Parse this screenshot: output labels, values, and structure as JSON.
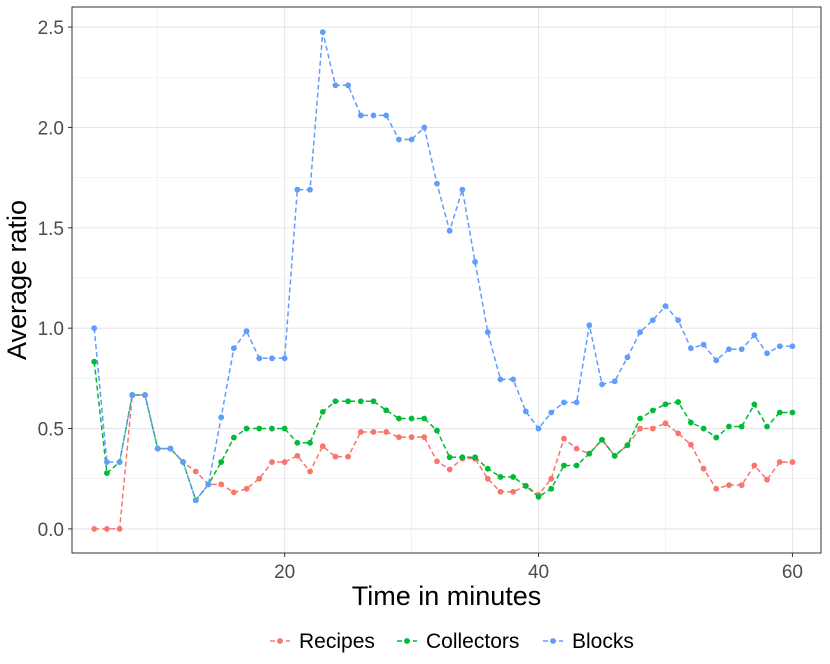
{
  "chart_data": {
    "type": "line",
    "xlabel": "Time in minutes",
    "ylabel": "Average ratio",
    "xlim": [
      3.25,
      62.25
    ],
    "ylim": [
      -0.12,
      2.6
    ],
    "xticks": [
      20,
      40,
      60
    ],
    "yticks": [
      0.0,
      0.5,
      1.0,
      1.5,
      2.0,
      2.5
    ],
    "xtick_labels": [
      "20",
      "40",
      "60"
    ],
    "ytick_labels": [
      "0.0",
      "0.5",
      "1.0",
      "1.5",
      "2.0",
      "2.5"
    ],
    "grid": true,
    "legend_position": "bottom",
    "x": [
      5,
      6,
      7,
      8,
      9,
      10,
      11,
      12,
      13,
      14,
      15,
      16,
      17,
      18,
      19,
      20,
      21,
      22,
      23,
      24,
      25,
      26,
      27,
      28,
      29,
      30,
      31,
      32,
      33,
      34,
      35,
      36,
      37,
      38,
      39,
      40,
      41,
      42,
      43,
      44,
      45,
      46,
      47,
      48,
      49,
      50,
      51,
      52,
      53,
      54,
      55,
      56,
      57,
      58,
      59,
      60
    ],
    "series": [
      {
        "name": "Recipes",
        "color": "#F8766D",
        "values": [
          0.0,
          0.0,
          0.0,
          0.667,
          0.667,
          0.4,
          0.4,
          0.333,
          0.286,
          0.222,
          0.222,
          0.182,
          0.2,
          0.25,
          0.333,
          0.333,
          0.364,
          0.286,
          0.412,
          0.36,
          0.36,
          0.483,
          0.483,
          0.483,
          0.457,
          0.457,
          0.457,
          0.337,
          0.296,
          0.35,
          0.35,
          0.25,
          0.185,
          0.185,
          0.214,
          0.17,
          0.25,
          0.45,
          0.4,
          0.375,
          0.444,
          0.364,
          0.417,
          0.5,
          0.5,
          0.526,
          0.476,
          0.42,
          0.3,
          0.2,
          0.218,
          0.218,
          0.316,
          0.245,
          0.333,
          0.333
        ]
      },
      {
        "name": "Collectors",
        "color": "#00BA38",
        "values": [
          0.833,
          0.278,
          0.333,
          0.667,
          0.667,
          0.4,
          0.4,
          0.333,
          0.143,
          0.222,
          0.333,
          0.455,
          0.5,
          0.5,
          0.5,
          0.5,
          0.429,
          0.429,
          0.583,
          0.636,
          0.636,
          0.636,
          0.636,
          0.591,
          0.55,
          0.55,
          0.55,
          0.49,
          0.357,
          0.357,
          0.357,
          0.3,
          0.259,
          0.259,
          0.214,
          0.16,
          0.2,
          0.316,
          0.316,
          0.375,
          0.444,
          0.364,
          0.417,
          0.55,
          0.59,
          0.621,
          0.632,
          0.53,
          0.5,
          0.455,
          0.51,
          0.51,
          0.62,
          0.51,
          0.58,
          0.58
        ]
      },
      {
        "name": "Blocks",
        "color": "#619CFF",
        "values": [
          1.0,
          0.333,
          0.333,
          0.667,
          0.667,
          0.4,
          0.4,
          0.333,
          0.143,
          0.222,
          0.556,
          0.9,
          0.985,
          0.85,
          0.85,
          0.85,
          1.69,
          1.69,
          2.475,
          2.21,
          2.21,
          2.06,
          2.06,
          2.06,
          1.94,
          1.94,
          2.0,
          1.72,
          1.485,
          1.69,
          1.33,
          0.98,
          0.745,
          0.745,
          0.585,
          0.5,
          0.58,
          0.63,
          0.63,
          1.015,
          0.72,
          0.735,
          0.855,
          0.98,
          1.04,
          1.11,
          1.04,
          0.9,
          0.918,
          0.84,
          0.895,
          0.895,
          0.965,
          0.875,
          0.91,
          0.91
        ]
      }
    ]
  }
}
